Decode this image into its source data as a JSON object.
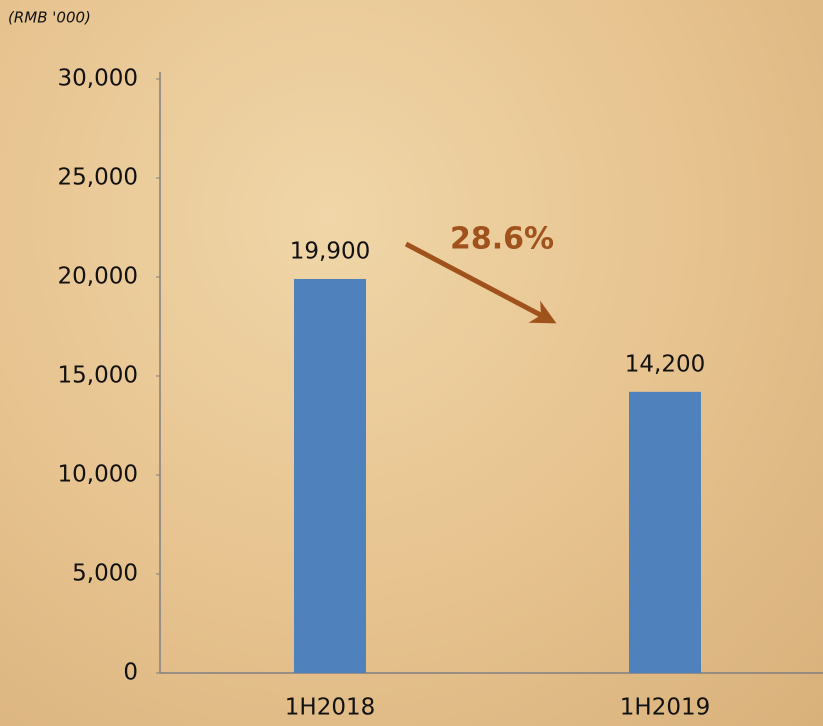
{
  "chart_data": {
    "type": "bar",
    "ylabel": "(RMB   '000)",
    "categories": [
      "1H2018",
      "1H2019"
    ],
    "values": [
      19900,
      14200
    ],
    "value_labels": [
      "19,900",
      "14,200"
    ],
    "color": "#4f81bd",
    "ylim": [
      0,
      30000
    ],
    "yticks": [
      0,
      {
        "value": 5000,
        "label": "5,000"
      },
      {
        "value": 10000,
        "label": "10,000"
      },
      {
        "value": 15000,
        "label": "15,000"
      },
      {
        "value": 20000,
        "label": "20,000"
      },
      {
        "value": 25000,
        "label": "25,000"
      },
      {
        "value": 30000,
        "label": "30,000"
      }
    ],
    "grid": false,
    "annotations": [
      {
        "text": "28.6%",
        "color": "#a0521c"
      }
    ]
  }
}
